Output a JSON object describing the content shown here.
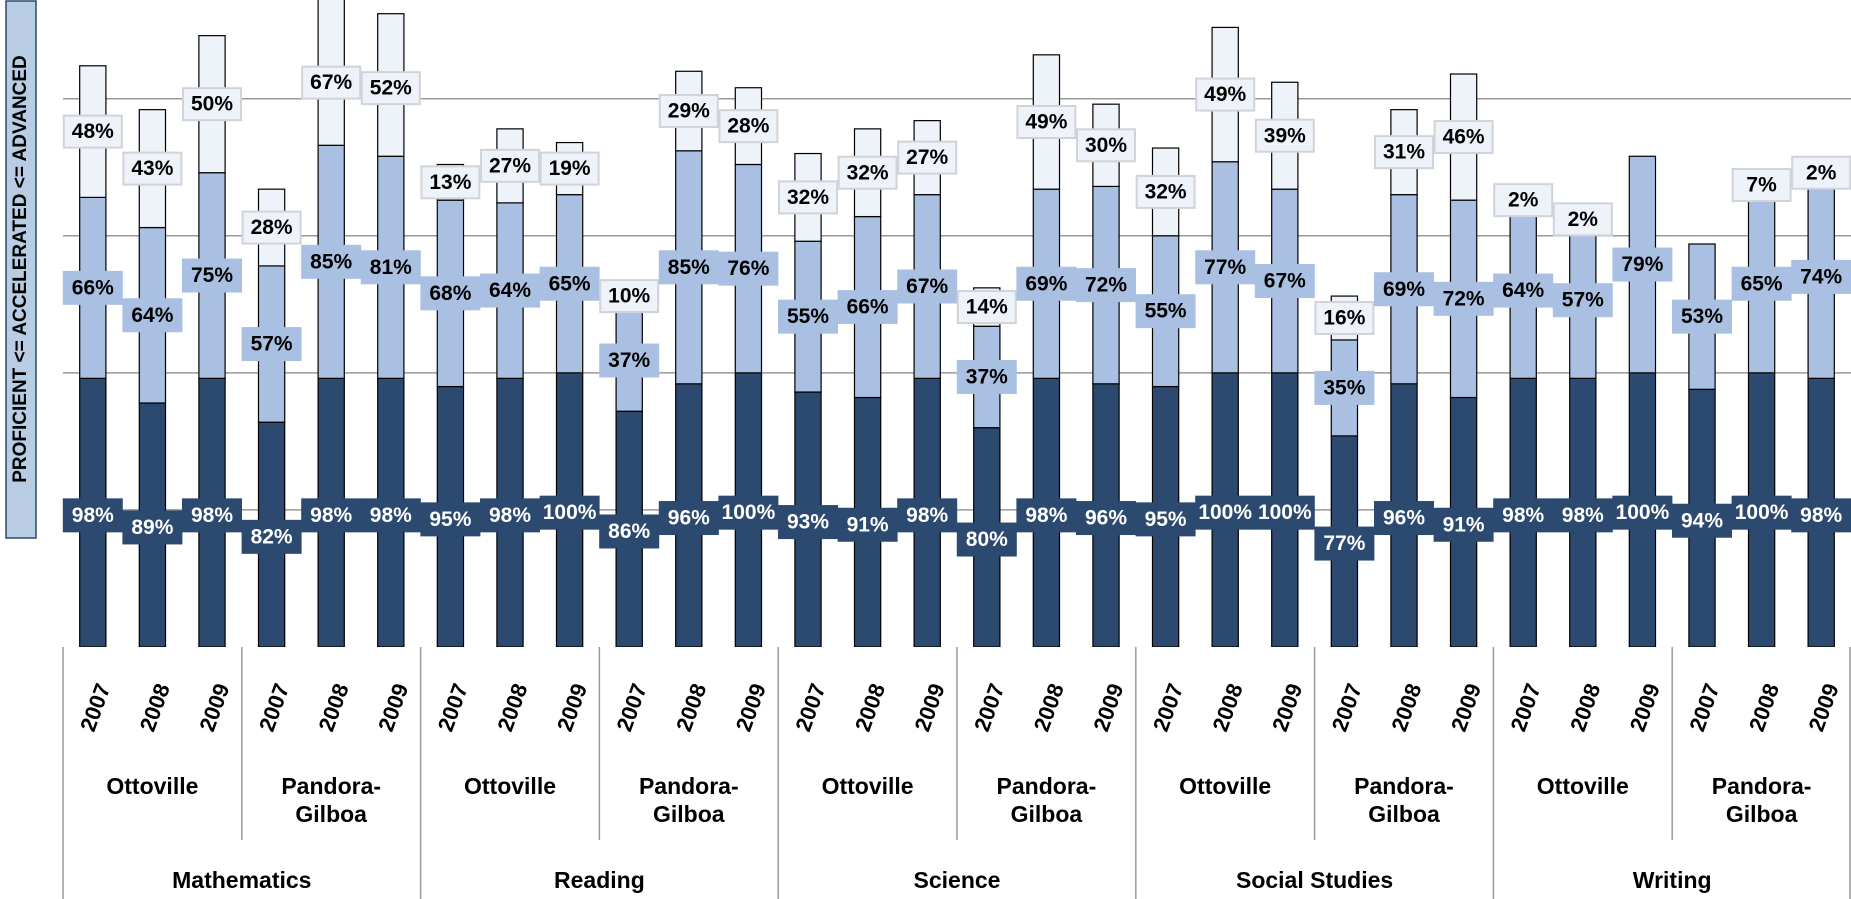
{
  "chart_data": {
    "type": "stacked-bar",
    "y_label": "PROFICIENT <= ACCELERATED <= ADVANCED",
    "categories": [
      "2007",
      "2008",
      "2009",
      "2007",
      "2008",
      "2009",
      "2007",
      "2008",
      "2009",
      "2007",
      "2008",
      "2009",
      "2007",
      "2008",
      "2009",
      "2007",
      "2008",
      "2009",
      "2007",
      "2008",
      "2009",
      "2007",
      "2008",
      "2009",
      "2007",
      "2008",
      "2009",
      "2007",
      "2008",
      "2009"
    ],
    "schools": [
      "Ottoville",
      "Pandora-Gilboa",
      "Ottoville",
      "Pandora-Gilboa",
      "Ottoville",
      "Pandora-Gilboa",
      "Ottoville",
      "Pandora-Gilboa",
      "Ottoville",
      "Pandora-Gilboa"
    ],
    "subjects": [
      "Mathematics",
      "Reading",
      "Science",
      "Social Studies",
      "Writing"
    ],
    "series": [
      {
        "color": "#2c4a70",
        "values": [
          98,
          89,
          98,
          82,
          98,
          98,
          95,
          98,
          100,
          86,
          96,
          100,
          93,
          91,
          98,
          80,
          98,
          96,
          95,
          100,
          100,
          77,
          96,
          91,
          98,
          98,
          100,
          94,
          100,
          98
        ],
        "value_labels": [
          "98%",
          "89%",
          "98%",
          "82%",
          "98%",
          "98%",
          "95%",
          "98%",
          "100%",
          "86%",
          "96%",
          "100%",
          "93%",
          "91%",
          "98%",
          "80%",
          "98%",
          "96%",
          "95%",
          "100%",
          "100%",
          "77%",
          "96%",
          "91%",
          "98%",
          "98%",
          "100%",
          "94%",
          "100%",
          "98%"
        ]
      },
      {
        "color": "#a9c0e2",
        "values": [
          66,
          64,
          75,
          57,
          85,
          81,
          68,
          64,
          65,
          37,
          85,
          76,
          55,
          66,
          67,
          37,
          69,
          72,
          55,
          77,
          67,
          35,
          69,
          72,
          64,
          57,
          79,
          53,
          65,
          74
        ],
        "value_labels": [
          "66%",
          "64%",
          "75%",
          "57%",
          "85%",
          "81%",
          "68%",
          "64%",
          "65%",
          "37%",
          "85%",
          "76%",
          "55%",
          "66%",
          "67%",
          "37%",
          "69%",
          "72%",
          "55%",
          "77%",
          "67%",
          "35%",
          "69%",
          "72%",
          "64%",
          "57%",
          "79%",
          "53%",
          "65%",
          "74%"
        ]
      },
      {
        "color": "#eef2f9",
        "values": [
          48,
          43,
          50,
          28,
          67,
          52,
          13,
          27,
          19,
          10,
          29,
          28,
          32,
          32,
          27,
          14,
          49,
          30,
          32,
          49,
          39,
          16,
          31,
          46,
          2,
          2,
          null,
          null,
          7,
          2
        ],
        "value_labels": [
          "48%",
          "43%",
          "50%",
          "28%",
          "67%",
          "52%",
          "13%",
          "27%",
          "19%",
          "10%",
          "29%",
          "28%",
          "32%",
          "32%",
          "27%",
          "14%",
          "49%",
          "30%",
          "32%",
          "49%",
          "39%",
          "16%",
          "31%",
          "46%",
          "2%",
          "2%",
          null,
          null,
          "7%",
          "2%"
        ]
      }
    ],
    "ylim": [
      0,
      236
    ],
    "yticks": [
      50,
      100,
      150,
      200
    ],
    "grid": true
  }
}
